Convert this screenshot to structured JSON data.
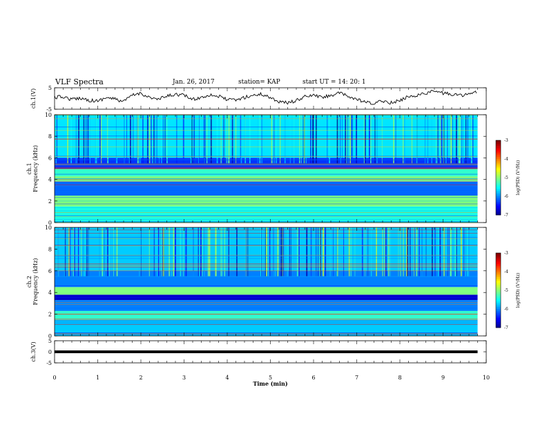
{
  "header": {
    "title": "VLF Spectra",
    "date": "Jan. 26, 2017",
    "station": "station= KAP",
    "start": "start  UT =   14: 20: 1"
  },
  "chart_data": [
    {
      "type": "line",
      "ylabel": "ch.1(V)",
      "ylim": [
        -5,
        5
      ],
      "yticks": [
        "5",
        "-5"
      ],
      "x": [
        0,
        0.2,
        0.4,
        0.6,
        0.8,
        1.0,
        1.2,
        1.4,
        1.6,
        1.8,
        2.0,
        2.2,
        2.4,
        2.6,
        2.8,
        3.0,
        3.2,
        3.4,
        3.6,
        3.8,
        4.0,
        4.2,
        4.4,
        4.6,
        4.8,
        5.0,
        5.2,
        5.4,
        5.6,
        5.8,
        6.0,
        6.2,
        6.4,
        6.6,
        6.8,
        7.0,
        7.2,
        7.4,
        7.6,
        7.8,
        8.0,
        8.2,
        8.4,
        8.6,
        8.8,
        9.0,
        9.2,
        9.4,
        9.6,
        9.8
      ],
      "values": [
        0.5,
        0.8,
        -0.5,
        0.3,
        -0.8,
        -1.2,
        0.5,
        -0.3,
        -1.5,
        1.5,
        2.5,
        0.5,
        -0.5,
        1.0,
        2.0,
        1.5,
        -0.5,
        0.5,
        1.8,
        1.0,
        -0.5,
        -0.8,
        0.5,
        1.5,
        2.0,
        0.5,
        -1.5,
        -2.0,
        -1.0,
        0.8,
        1.5,
        0.5,
        1.5,
        2.5,
        1.0,
        -0.5,
        -1.8,
        -2.5,
        -1.0,
        -2.0,
        -1.0,
        1.0,
        1.5,
        2.5,
        3.5,
        2.5,
        2.0,
        1.5,
        2.0,
        3.0
      ]
    },
    {
      "type": "heatmap",
      "ylabel": "ch.1\nFrequency (kHz)",
      "ylim": [
        0,
        10
      ],
      "yticks": [
        "0",
        "2",
        "4",
        "6",
        "8",
        "10"
      ],
      "colorbar": {
        "label": "log(PSD) (V²/Hz)",
        "ticks": [
          "-3",
          "-4",
          "-5",
          "-6",
          "-7"
        ],
        "range": [
          -7,
          -3
        ]
      },
      "bands_khz": [
        [
          0,
          1.5,
          -5.4
        ],
        [
          1.5,
          2.5,
          -5.0
        ],
        [
          2.5,
          3.8,
          -6.1
        ],
        [
          3.8,
          4.3,
          -5.1
        ],
        [
          4.3,
          5.0,
          -5.3
        ],
        [
          5.0,
          6.0,
          -6.3
        ],
        [
          6.0,
          10,
          -5.6
        ]
      ]
    },
    {
      "type": "heatmap",
      "ylabel": "ch.2\nFrequency (kHz)",
      "ylim": [
        0,
        10
      ],
      "yticks": [
        "0",
        "2",
        "4",
        "6",
        "8",
        "10"
      ],
      "colorbar": {
        "label": "log(PSD) (V²/Hz)",
        "ticks": [
          "-3",
          "-4",
          "-5",
          "-6",
          "-7"
        ],
        "range": [
          -7,
          -3
        ]
      },
      "bands_khz": [
        [
          0,
          1.5,
          -5.7
        ],
        [
          1.5,
          2.3,
          -5.3
        ],
        [
          2.3,
          3.3,
          -6.0
        ],
        [
          3.3,
          3.8,
          -6.7
        ],
        [
          3.8,
          4.5,
          -5.0
        ],
        [
          4.5,
          6.0,
          -6.0
        ],
        [
          6.0,
          10,
          -5.7
        ]
      ]
    },
    {
      "type": "line",
      "ylabel": "ch.3(V)",
      "ylim": [
        -5,
        5
      ],
      "yticks": [
        "5",
        "0",
        "-5"
      ],
      "x": [
        0,
        9.8
      ],
      "values": [
        0,
        0
      ]
    }
  ],
  "x_axis": {
    "label": "Time  (min)",
    "range": [
      0,
      10
    ],
    "ticks": [
      "0",
      "1",
      "2",
      "3",
      "4",
      "5",
      "6",
      "7",
      "8",
      "9",
      "10"
    ]
  }
}
